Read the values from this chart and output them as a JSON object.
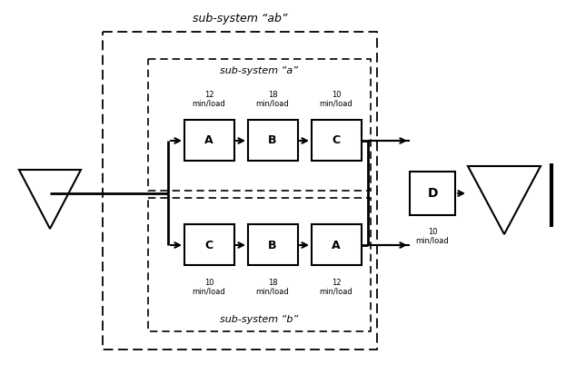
{
  "bg_color": "#ffffff",
  "fig_width": 6.23,
  "fig_height": 4.23,
  "dpi": 100,
  "subsystem_ab_label": "sub-system “ab”",
  "subsystem_a_label": "sub-system “a”",
  "subsystem_b_label": "sub-system “b”",
  "box_D_label": "D",
  "box_D_rate": "10\nmin/load",
  "top_boxes": [
    {
      "label": "A",
      "rate": "12\nmin/load"
    },
    {
      "label": "B",
      "rate": "18\nmin/load"
    },
    {
      "label": "C",
      "rate": "10\nmin/load"
    }
  ],
  "bottom_boxes": [
    {
      "label": "C",
      "rate": "10\nmin/load"
    },
    {
      "label": "B",
      "rate": "18\nmin/load"
    },
    {
      "label": "A",
      "rate": "12\nmin/load"
    }
  ],
  "line_color": "#000000",
  "box_color": "#ffffff"
}
